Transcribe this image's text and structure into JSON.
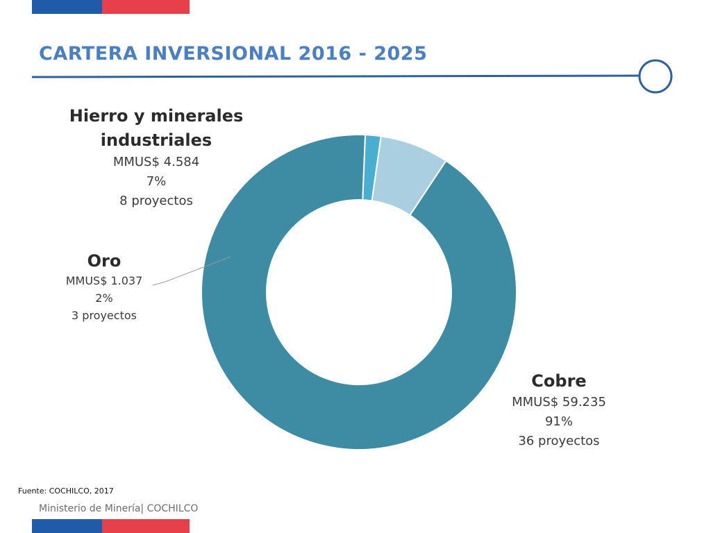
{
  "title": "CARTERA INVERSIONAL 2016 - 2025",
  "source": "Fuente: COCHILCO, 2017",
  "footer": "Ministerio de Minería| COCHILCO",
  "colors": {
    "flag_blue": "#1f5ba8",
    "flag_red": "#e8404b",
    "title": "#4a7fc1",
    "cobre": "#3d8ca3",
    "oro": "#4aaed0",
    "hierro": "#a9cfe0"
  },
  "chart_data": {
    "type": "pie",
    "variant": "donut",
    "title": "",
    "slices": [
      {
        "name": "Cobre",
        "value": 59235,
        "value_label": "MMUS$ 59.235",
        "percent_label": "91%",
        "projects_label": "36 proyectos",
        "color": "#3d8ca3"
      },
      {
        "name": "Oro",
        "value": 1037,
        "value_label": "MMUS$ 1.037",
        "percent_label": "2%",
        "projects_label": "3 proyectos",
        "color": "#4aaed0"
      },
      {
        "name": "Hierro y minerales industriales",
        "name_lines": [
          "Hierro y minerales",
          "industriales"
        ],
        "value": 4584,
        "value_label": "MMUS$ 4.584",
        "percent_label": "7%",
        "projects_label": "8 proyectos",
        "color": "#a9cfe0"
      }
    ]
  }
}
